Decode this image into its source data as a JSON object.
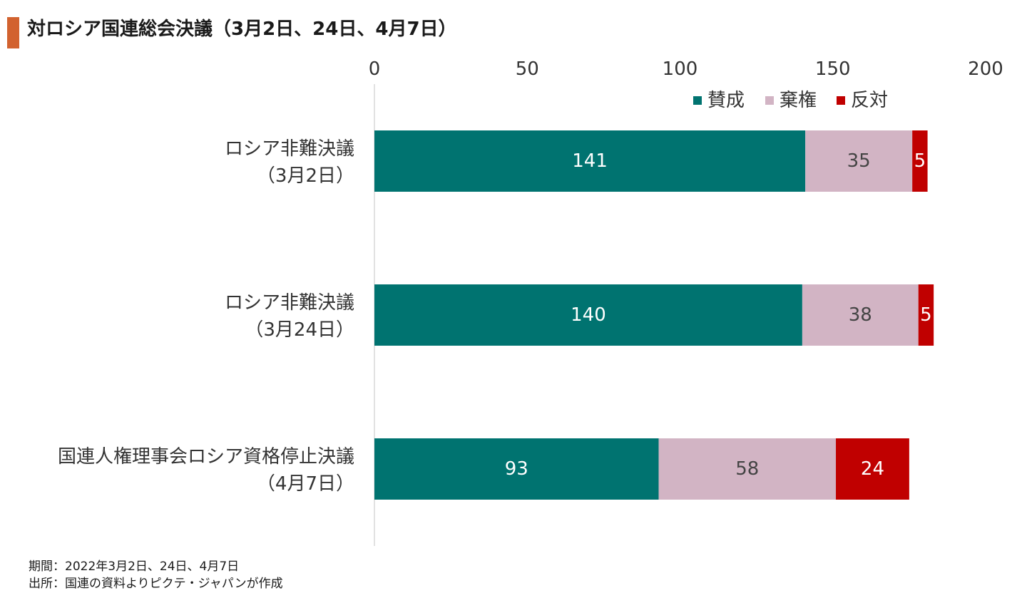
{
  "title": "対ロシア国連総会決議（3月2日、24日、4月7日）",
  "footnotes": {
    "period": "期間：2022年3月2日、24日、4月7日",
    "source": "出所：国連の資料よりピクテ・ジャパンが作成"
  },
  "chart_data": {
    "type": "bar",
    "orientation": "horizontal",
    "stacked": true,
    "xlim": [
      0,
      200
    ],
    "xticks": [
      0,
      50,
      100,
      150,
      200
    ],
    "xtick_labels": [
      "0",
      "50",
      "100",
      "150",
      "200"
    ],
    "x_axis_position": "top",
    "grid": false,
    "legend_position": "top-right",
    "categories": [
      {
        "line1": "ロシア非難決議",
        "line2": "（3月2日）"
      },
      {
        "line1": "ロシア非難決議",
        "line2": "（3月24日）"
      },
      {
        "line1": "国連人権理事会ロシア資格停止決議",
        "line2": "（4月7日）"
      }
    ],
    "series": [
      {
        "name": "賛成",
        "color": "#007370",
        "label_color": "#ffffff",
        "values": [
          141,
          140,
          93
        ]
      },
      {
        "name": "棄権",
        "color": "#d2b4c4",
        "label_color": "#444444",
        "values": [
          35,
          38,
          58
        ]
      },
      {
        "name": "反対",
        "color": "#c00000",
        "label_color": "#ffffff",
        "values": [
          5,
          5,
          24
        ]
      }
    ]
  }
}
